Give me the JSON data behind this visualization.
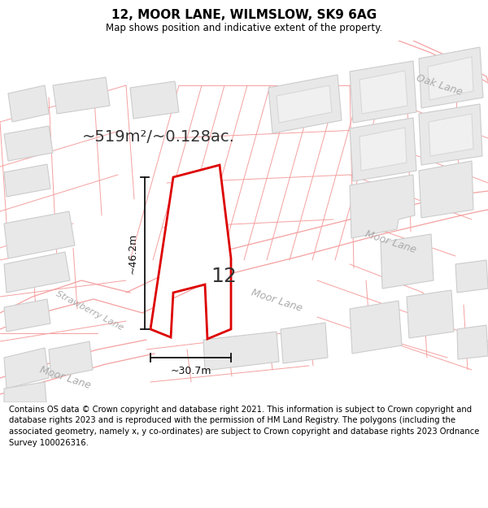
{
  "title": "12, MOOR LANE, WILMSLOW, SK9 6AG",
  "subtitle": "Map shows position and indicative extent of the property.",
  "footer": "Contains OS data © Crown copyright and database right 2021. This information is subject to Crown copyright and database rights 2023 and is reproduced with the permission of HM Land Registry. The polygons (including the associated geometry, namely x, y co-ordinates) are subject to Crown copyright and database rights 2023 Ordnance Survey 100026316.",
  "area_text": "~519m²/~0.128ac.",
  "dim_vertical": "~46.2m",
  "dim_horizontal": "~30.7m",
  "label_number": "12",
  "map_bg": "#ffffff",
  "building_fc": "#e8e8e8",
  "building_ec": "#cccccc",
  "road_line_color": "#f5a0a0",
  "highlight_color": "#dd0000",
  "dim_color": "#111111",
  "street_label_color": "#aaaaaa",
  "title_fontsize": 11,
  "subtitle_fontsize": 8.5,
  "footer_fontsize": 7.2,
  "area_fontsize": 14,
  "number_fontsize": 18,
  "street_fontsize": 9
}
